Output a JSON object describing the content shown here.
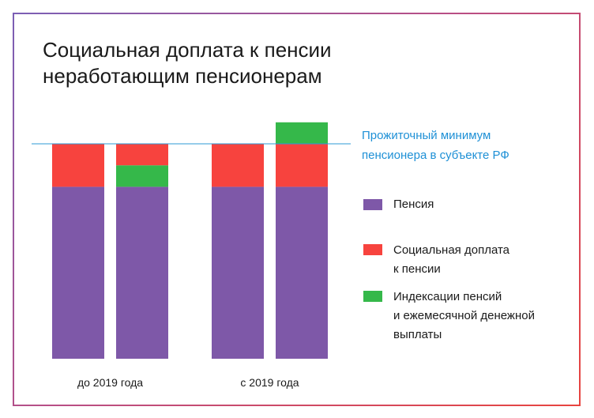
{
  "title_lines": [
    "Социальная доплата к пенсии",
    "неработающим пенсионерам"
  ],
  "colors": {
    "pension": "#7e58a8",
    "social": "#f7433e",
    "indexation": "#35b84a",
    "reference": "#2e9ad6",
    "reference_text": "#1e90d6"
  },
  "reference_label_lines": [
    "Прожиточный минимум",
    "пенсионера в субъекте РФ"
  ],
  "legend": [
    {
      "key": "pension",
      "lines": [
        "Пенсия"
      ]
    },
    {
      "key": "social",
      "lines": [
        "Социальная доплата",
        "к пенсии"
      ]
    },
    {
      "key": "indexation",
      "lines": [
        "Индексации пенсий",
        "и ежемесячной денежной",
        "выплаты"
      ]
    }
  ],
  "chart_data": {
    "type": "bar",
    "stacked": true,
    "categories": [
      "до 2019 года",
      "с 2019 года"
    ],
    "reference_line": {
      "name": "Прожиточный минимум пенсионера в субъекте РФ",
      "value": 100
    },
    "bars": [
      {
        "category": "до 2019 года",
        "segments": [
          {
            "series": "pension",
            "value": 80
          },
          {
            "series": "social",
            "value": 20
          }
        ]
      },
      {
        "category": "до 2019 года",
        "segments": [
          {
            "series": "pension",
            "value": 80
          },
          {
            "series": "indexation",
            "value": 10
          },
          {
            "series": "social",
            "value": 10
          }
        ]
      },
      {
        "category": "с 2019 года",
        "segments": [
          {
            "series": "pension",
            "value": 80
          },
          {
            "series": "social",
            "value": 20
          }
        ]
      },
      {
        "category": "с 2019 года",
        "segments": [
          {
            "series": "pension",
            "value": 80
          },
          {
            "series": "social",
            "value": 20
          },
          {
            "series": "indexation",
            "value": 10
          }
        ]
      }
    ],
    "series": [
      {
        "key": "pension",
        "name": "Пенсия"
      },
      {
        "key": "social",
        "name": "Социальная доплата к пенсии"
      },
      {
        "key": "indexation",
        "name": "Индексации пенсий и ежемесячной денежной выплаты"
      }
    ],
    "ylim": [
      0,
      110
    ]
  }
}
